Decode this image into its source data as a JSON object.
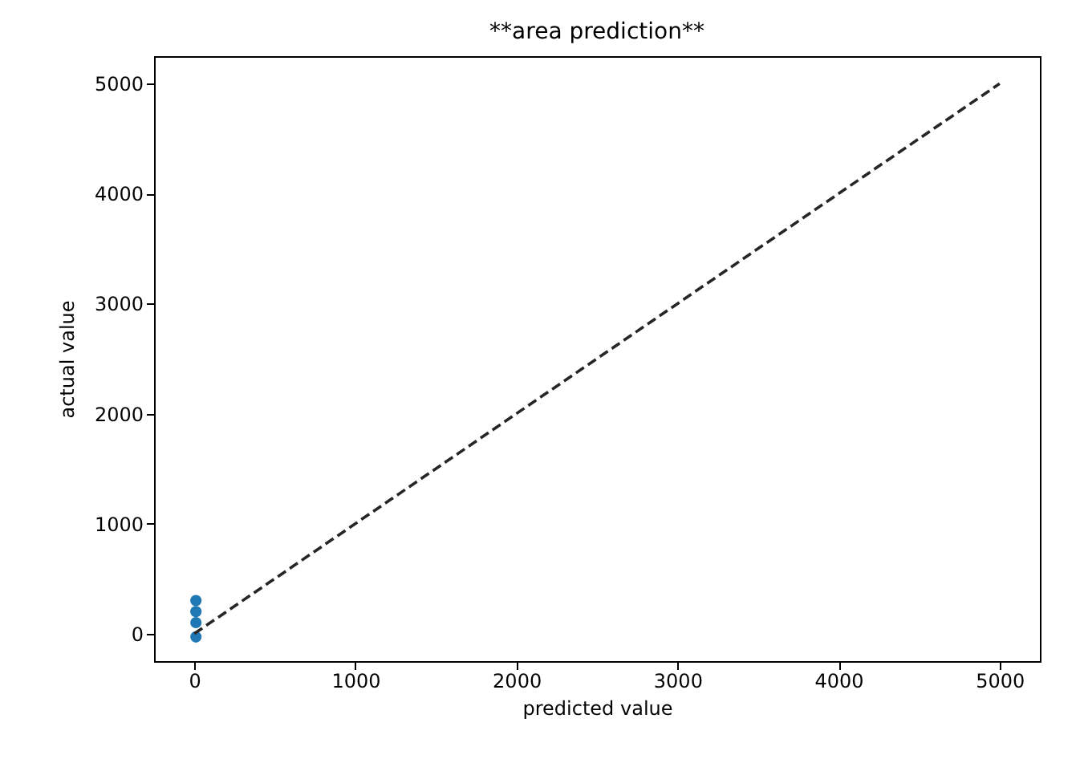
{
  "chart_data": {
    "type": "scatter",
    "title": "**area prediction**",
    "xlabel": "predicted value",
    "ylabel": "actual value",
    "xlim": [
      -250,
      5250
    ],
    "ylim": [
      -250,
      5250
    ],
    "xticks": [
      0,
      1000,
      2000,
      3000,
      4000,
      5000
    ],
    "yticks": [
      0,
      1000,
      2000,
      3000,
      4000,
      5000
    ],
    "grid": false,
    "series": [
      {
        "color": "#1f77b4",
        "marker": "circle",
        "x": [
          10,
          10,
          10,
          10
        ],
        "values": [
          -30,
          100,
          200,
          300
        ]
      },
      {
        "type": "line",
        "color": "#262626",
        "line_style": "dashed",
        "marker": "none",
        "x": [
          0,
          5000
        ],
        "values": [
          0,
          5000
        ]
      }
    ]
  }
}
